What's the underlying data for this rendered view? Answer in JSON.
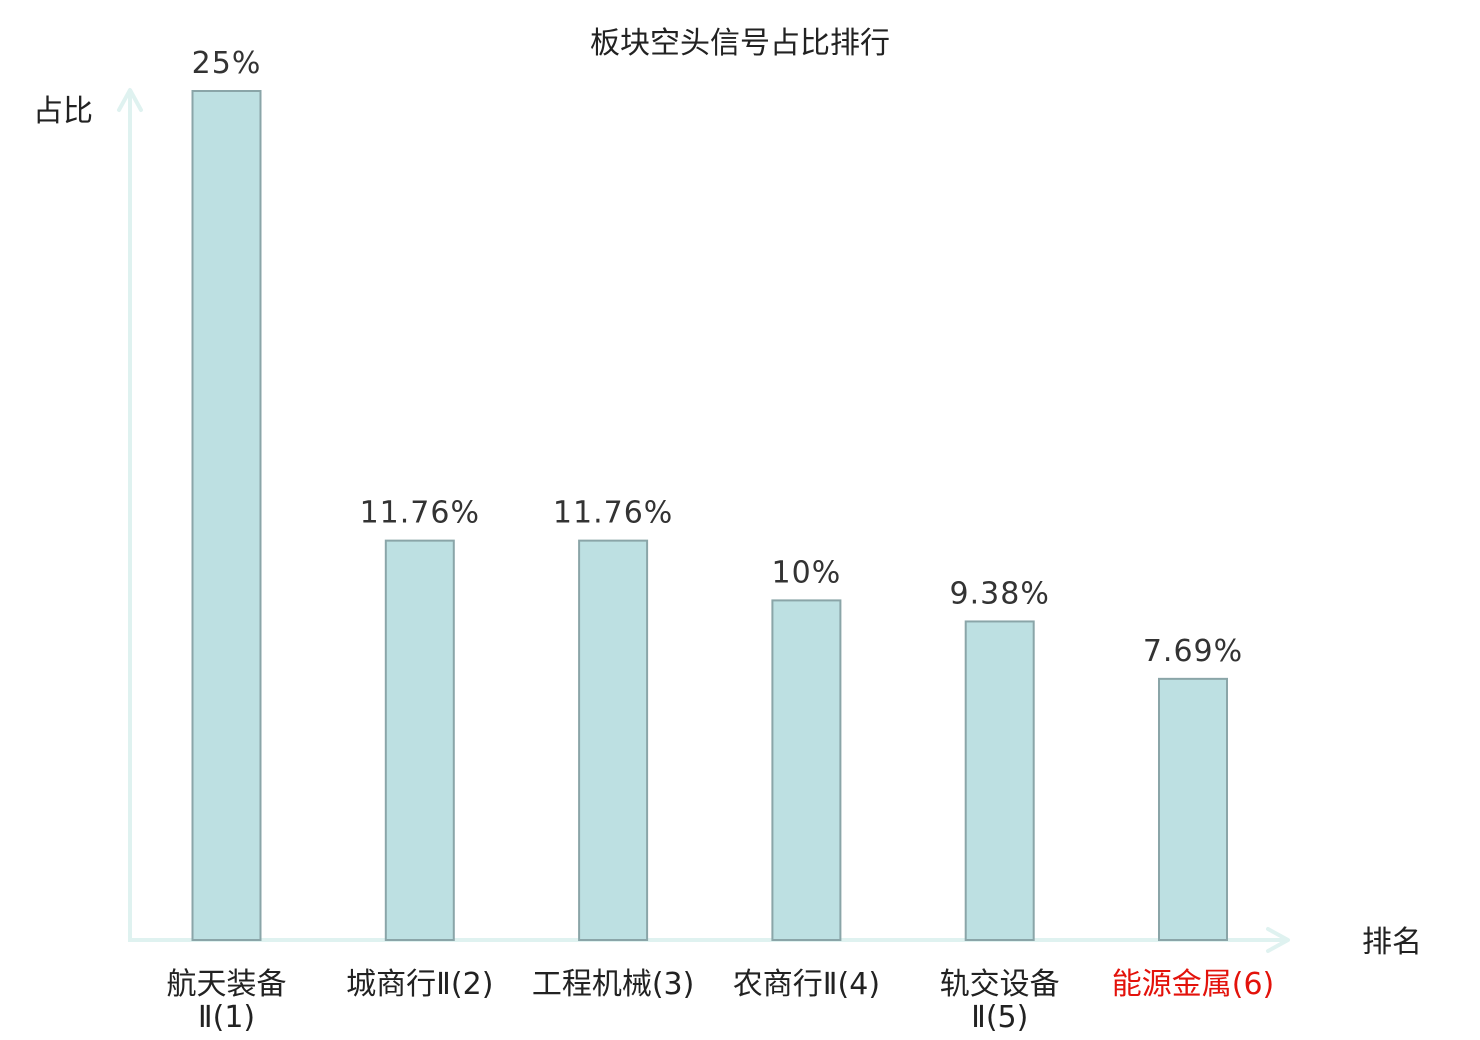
{
  "chart_data": {
    "type": "bar",
    "title": "板块空头信号占比排行",
    "ylabel": "占比",
    "xlabel": "排名",
    "categories": [
      [
        "航天装备",
        "Ⅱ(1)"
      ],
      [
        "城商行Ⅱ(2)"
      ],
      [
        "工程机械(3)"
      ],
      [
        "农商行Ⅱ(4)"
      ],
      [
        "轨交设备",
        "Ⅱ(5)"
      ],
      [
        "能源金属(6)"
      ]
    ],
    "values": [
      25,
      11.76,
      11.76,
      10,
      9.38,
      7.69
    ],
    "value_labels": [
      "25%",
      "11.76%",
      "11.76%",
      "10%",
      "9.38%",
      "7.69%"
    ],
    "highlight_index": 5,
    "ylim": [
      0,
      25
    ],
    "grid": false,
    "colors": {
      "bar_fill": "#bde0e2",
      "bar_stroke": "#8aa5a8",
      "axis": "#dff2f0",
      "text": "#222222",
      "highlight": "#e3120b"
    }
  }
}
